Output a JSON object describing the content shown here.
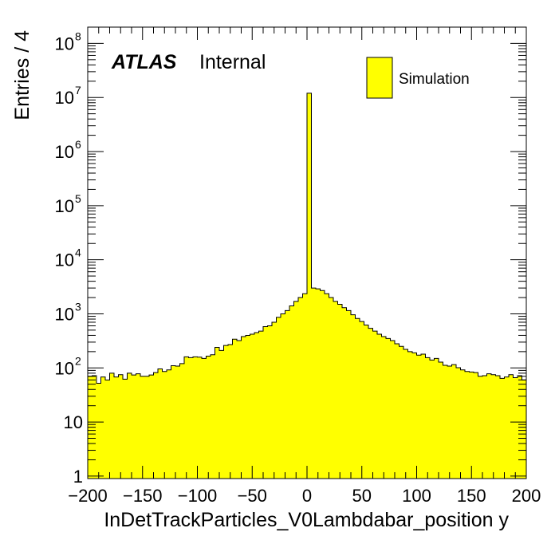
{
  "chart_data": {
    "type": "histogram",
    "xlabel": "InDetTrackParticles_V0Lambdabar_position y",
    "ylabel": "Entries / 4",
    "xlim": [
      -200,
      200
    ],
    "ylim": [
      0.9,
      200000000
    ],
    "yscale": "log",
    "bin_width": 4,
    "fill_color": "#ffff00",
    "line_color": "#000000",
    "x_ticks": [
      "−200",
      "−150",
      "−100",
      "−50",
      "0",
      "50",
      "100",
      "150",
      "200"
    ],
    "x_tick_values": [
      -200,
      -150,
      -100,
      -50,
      0,
      50,
      100,
      150,
      200
    ],
    "y_ticks": [
      {
        "value": 1,
        "base": "1",
        "exp": ""
      },
      {
        "value": 10,
        "base": "10",
        "exp": ""
      },
      {
        "value": 100,
        "base": "10",
        "exp": "2"
      },
      {
        "value": 1000,
        "base": "10",
        "exp": "3"
      },
      {
        "value": 10000,
        "base": "10",
        "exp": "4"
      },
      {
        "value": 100000,
        "base": "10",
        "exp": "5"
      },
      {
        "value": 1000000,
        "base": "10",
        "exp": "6"
      },
      {
        "value": 10000000,
        "base": "10",
        "exp": "7"
      },
      {
        "value": 100000000,
        "base": "10",
        "exp": "8"
      }
    ],
    "annotation": {
      "atlas": "ATLAS",
      "status": "Internal"
    },
    "legend": {
      "label": "Simulation",
      "position": "top-right"
    },
    "x": [
      -198,
      -194,
      -190,
      -186,
      -182,
      -178,
      -174,
      -170,
      -166,
      -162,
      -158,
      -154,
      -150,
      -146,
      -142,
      -138,
      -134,
      -130,
      -126,
      -122,
      -118,
      -114,
      -110,
      -106,
      -102,
      -98,
      -94,
      -90,
      -86,
      -82,
      -78,
      -74,
      -70,
      -66,
      -62,
      -58,
      -54,
      -50,
      -46,
      -42,
      -38,
      -34,
      -30,
      -26,
      -22,
      -18,
      -14,
      -10,
      -6,
      -2,
      2,
      6,
      10,
      14,
      18,
      22,
      26,
      30,
      34,
      38,
      42,
      46,
      50,
      54,
      58,
      62,
      66,
      70,
      74,
      78,
      82,
      86,
      90,
      94,
      98,
      102,
      106,
      110,
      114,
      118,
      122,
      126,
      130,
      134,
      138,
      142,
      146,
      150,
      154,
      158,
      162,
      166,
      170,
      174,
      178,
      182,
      186,
      190,
      194,
      198
    ],
    "values": [
      70,
      72,
      52,
      68,
      60,
      80,
      68,
      75,
      62,
      80,
      74,
      78,
      70,
      70,
      74,
      82,
      96,
      86,
      92,
      110,
      108,
      120,
      160,
      155,
      160,
      158,
      150,
      165,
      175,
      240,
      210,
      260,
      270,
      340,
      320,
      380,
      400,
      420,
      450,
      480,
      580,
      600,
      700,
      860,
      1000,
      1150,
      1400,
      1700,
      2000,
      2350,
      12000000,
      3000,
      2900,
      2700,
      2350,
      2000,
      1700,
      1500,
      1300,
      1150,
      960,
      820,
      720,
      620,
      540,
      480,
      420,
      380,
      350,
      320,
      280,
      250,
      220,
      200,
      190,
      172,
      180,
      155,
      140,
      150,
      128,
      112,
      108,
      115,
      101,
      92,
      86,
      84,
      82,
      70,
      72,
      78,
      75,
      72,
      64,
      68,
      75,
      66,
      72,
      60
    ]
  }
}
